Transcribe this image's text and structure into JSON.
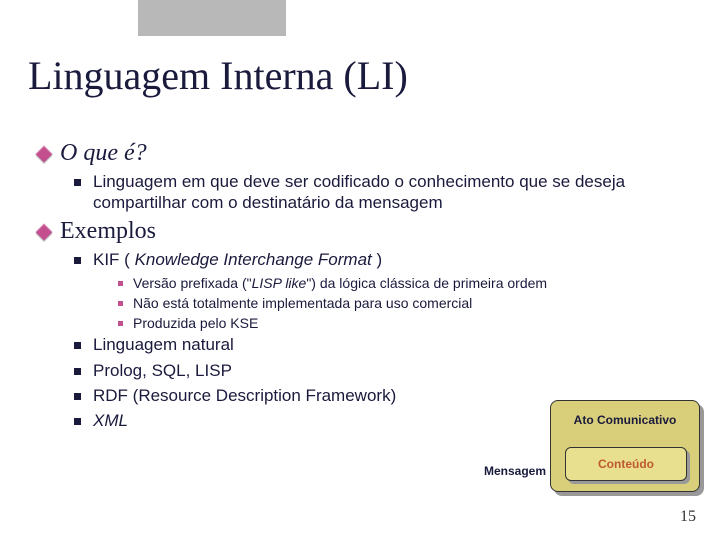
{
  "title": "Linguagem Interna (LI)",
  "sec1": {
    "heading": "O que é?",
    "item": "Linguagem em que deve ser codificado o conhecimento que se deseja compartilhar com o destinatário da mensagem"
  },
  "sec2": {
    "heading": "Exemplos",
    "kif_pre": "KIF ( ",
    "kif_italic": "Knowledge Interchange Format",
    "kif_post": " )",
    "sub1_pre": "Versão prefixada (\"",
    "sub1_italic": "LISP like",
    "sub1_post": "\") da lógica clássica de primeira ordem",
    "sub2": "Não está totalmente implementada para uso comercial",
    "sub3": "Produzida pelo KSE",
    "ex2": "Linguagem natural",
    "ex3": "Prolog, SQL, LISP",
    "ex4": "RDF (Resource Description Framework)",
    "ex5": "XML"
  },
  "diagram": {
    "outer": "Ato Comunicativo",
    "inner": "Conteúdo",
    "msg": "Mensagem"
  },
  "pagenum": "15"
}
